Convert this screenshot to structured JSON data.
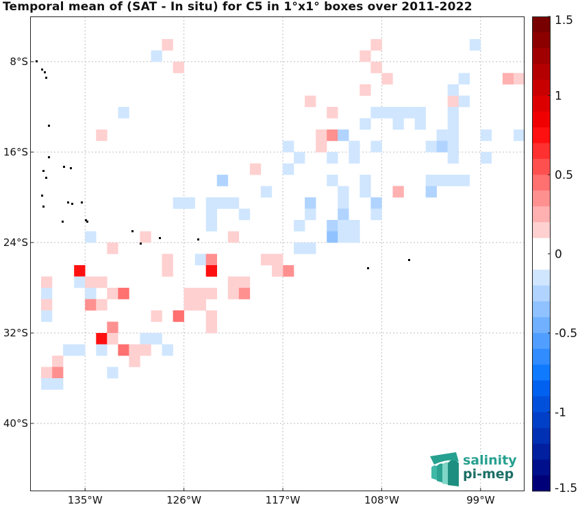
{
  "title": "Temporal mean of (SAT - In situ) for C5 in 1°x1° boxes over 2011-2022",
  "map": {
    "lon_range": [
      -140,
      -95
    ],
    "lat_range": [
      -46,
      -4
    ],
    "lon_ticks": [
      -135,
      -126,
      -117,
      -108,
      -99
    ],
    "lon_tick_labels": [
      "135°W",
      "126°W",
      "117°W",
      "108°W",
      "99°W"
    ],
    "lat_ticks": [
      -8,
      -16,
      -24,
      -32,
      -40
    ],
    "lat_tick_labels": [
      "8°S",
      "16°S",
      "24°S",
      "32°S",
      "40°S"
    ],
    "grid": true
  },
  "colorbar": {
    "vmin": -1.5,
    "vmax": 1.5,
    "tick_values": [
      1.5,
      1,
      0.5,
      0,
      -0.5,
      -1,
      -1.5
    ],
    "tick_labels": [
      "1.5",
      "1",
      "0.5",
      "0",
      "-0.5",
      "-1",
      "-1.5"
    ],
    "colors_top_to_bottom": [
      "#780000",
      "#8c0000",
      "#a00000",
      "#b40000",
      "#c80000",
      "#dc0000",
      "#f00000",
      "#ff1010",
      "#ff3030",
      "#ff5050",
      "#ff7070",
      "#ff9090",
      "#ffb0b0",
      "#ffd0d0",
      "#ffffff",
      "#ffffff",
      "#d0e6ff",
      "#b0d4ff",
      "#90c2ff",
      "#70b0ff",
      "#509eff",
      "#308cff",
      "#107aff",
      "#0060f0",
      "#0050dc",
      "#0040c8",
      "#0030b4",
      "#0020a0",
      "#00108c",
      "#000078"
    ]
  },
  "boxes": [
    [
      -128,
      -6,
      0.15
    ],
    [
      -127,
      -8,
      0.15
    ],
    [
      -109,
      -6,
      0.15
    ],
    [
      -110,
      -7,
      0.15
    ],
    [
      -109,
      -8,
      0.2
    ],
    [
      -108,
      -9,
      0.2
    ],
    [
      -110,
      -10,
      0.15
    ],
    [
      -100,
      -6,
      -0.15
    ],
    [
      -97,
      -9,
      0.25
    ],
    [
      -96,
      -9,
      0.15
    ],
    [
      -101,
      -9,
      -0.1
    ],
    [
      -115,
      -11,
      0.1
    ],
    [
      -113,
      -12,
      0.15
    ],
    [
      -102,
      -11,
      0.12
    ],
    [
      -101,
      -11,
      -0.1
    ],
    [
      -102,
      -10,
      -0.1
    ],
    [
      -109,
      -12,
      -0.1
    ],
    [
      -108,
      -12,
      -0.1
    ],
    [
      -107,
      -12,
      -0.1
    ],
    [
      -106,
      -12,
      -0.1
    ],
    [
      -105,
      -12,
      -0.1
    ],
    [
      -102,
      -12,
      -0.1
    ],
    [
      -110,
      -13,
      -0.1
    ],
    [
      -107,
      -13,
      -0.1
    ],
    [
      -105,
      -13,
      -0.1
    ],
    [
      -102,
      -13,
      -0.1
    ],
    [
      -114,
      -14,
      0.15
    ],
    [
      -113,
      -14,
      0.35
    ],
    [
      -112,
      -14,
      -0.25
    ],
    [
      -103,
      -14,
      -0.1
    ],
    [
      -102,
      -14,
      -0.1
    ],
    [
      -99,
      -14,
      -0.1
    ],
    [
      -96,
      -14,
      -0.1
    ],
    [
      -117,
      -15,
      -0.1
    ],
    [
      -114,
      -15,
      0.15
    ],
    [
      -111,
      -15,
      -0.1
    ],
    [
      -109,
      -15,
      -0.1
    ],
    [
      -104,
      -15,
      -0.1
    ],
    [
      -103,
      -15,
      -0.25
    ],
    [
      -102,
      -15,
      -0.1
    ],
    [
      -116,
      -16,
      -0.1
    ],
    [
      -113,
      -16,
      -0.1
    ],
    [
      -111,
      -16,
      -0.1
    ],
    [
      -102,
      -16,
      -0.1
    ],
    [
      -99,
      -16,
      -0.1
    ],
    [
      -120,
      -17,
      0.15
    ],
    [
      -117,
      -17,
      -0.1
    ],
    [
      -123,
      -18,
      -0.25
    ],
    [
      -113,
      -18,
      -0.1
    ],
    [
      -110,
      -18,
      -0.1
    ],
    [
      -104,
      -18,
      -0.1
    ],
    [
      -103,
      -18,
      -0.1
    ],
    [
      -102,
      -18,
      -0.1
    ],
    [
      -101,
      -18,
      -0.1
    ],
    [
      -119,
      -19,
      -0.1
    ],
    [
      -112,
      -19,
      -0.1
    ],
    [
      -110,
      -19,
      -0.1
    ],
    [
      -107,
      -19,
      0.25
    ],
    [
      -104,
      -19,
      -0.25
    ],
    [
      -134,
      -14,
      0.15
    ],
    [
      -132,
      -12,
      -0.1
    ],
    [
      -129,
      -7,
      -0.1
    ],
    [
      -127,
      -20,
      -0.1
    ],
    [
      -126,
      -20,
      -0.1
    ],
    [
      -124,
      -20,
      -0.1
    ],
    [
      -123,
      -20,
      -0.1
    ],
    [
      -122,
      -20,
      -0.1
    ],
    [
      -115,
      -20,
      -0.25
    ],
    [
      -112,
      -20,
      -0.1
    ],
    [
      -109,
      -20,
      -0.25
    ],
    [
      -124,
      -21,
      -0.1
    ],
    [
      -121,
      -21,
      -0.1
    ],
    [
      -115,
      -21,
      -0.1
    ],
    [
      -112,
      -21,
      -0.25
    ],
    [
      -109,
      -21,
      -0.1
    ],
    [
      -124,
      -22,
      -0.1
    ],
    [
      -116,
      -22,
      -0.1
    ],
    [
      -113,
      -22,
      -0.25
    ],
    [
      -112,
      -22,
      -0.1
    ],
    [
      -111,
      -22,
      -0.1
    ],
    [
      -130,
      -23,
      0.2
    ],
    [
      -122,
      -23,
      0.2
    ],
    [
      -113,
      -23,
      -0.3
    ],
    [
      -112,
      -23,
      -0.1
    ],
    [
      -111,
      -23,
      -0.1
    ],
    [
      -133,
      -24,
      0.2
    ],
    [
      -135,
      -23,
      -0.15
    ],
    [
      -116,
      -24,
      -0.1
    ],
    [
      -115,
      -24,
      -0.1
    ],
    [
      -128,
      -25,
      0.2
    ],
    [
      -125,
      -25,
      -0.1
    ],
    [
      -124,
      -25,
      0.4
    ],
    [
      -119,
      -25,
      0.15
    ],
    [
      -118,
      -25,
      0.15
    ],
    [
      -136,
      -26,
      0.75
    ],
    [
      -128,
      -26,
      0.2
    ],
    [
      -124,
      -26,
      0.75
    ],
    [
      -122,
      -27,
      0.2
    ],
    [
      -117,
      -26,
      0.4
    ],
    [
      -118,
      -26,
      0.15
    ],
    [
      -139,
      -27,
      0.2
    ],
    [
      -136,
      -27,
      -0.1
    ],
    [
      -135,
      -27,
      0.15
    ],
    [
      -134,
      -27,
      0.15
    ],
    [
      -121,
      -27,
      0.15
    ],
    [
      -139,
      -28,
      -0.1
    ],
    [
      -135,
      -28,
      -0.15
    ],
    [
      -133,
      -28,
      0.2
    ],
    [
      -132,
      -28,
      0.45
    ],
    [
      -125,
      -28,
      0.2
    ],
    [
      -124,
      -28,
      0.15
    ],
    [
      -122,
      -28,
      0.2
    ],
    [
      -121,
      -28,
      0.35
    ],
    [
      -126,
      -28,
      0.2
    ],
    [
      -139,
      -29,
      0.2
    ],
    [
      -135,
      -29,
      0.4
    ],
    [
      -134,
      -29,
      0.2
    ],
    [
      -126,
      -29,
      0.2
    ],
    [
      -125,
      -29,
      0.2
    ],
    [
      -139,
      -30,
      -0.1
    ],
    [
      -129,
      -30,
      0.2
    ],
    [
      -127,
      -30,
      0.5
    ],
    [
      -124,
      -30,
      0.2
    ],
    [
      -133,
      -31,
      0.4
    ],
    [
      -124,
      -31,
      0.2
    ],
    [
      -134,
      -32,
      0.75
    ],
    [
      -133,
      -32,
      0.15
    ],
    [
      -130,
      -32,
      -0.1
    ],
    [
      -129,
      -32,
      -0.1
    ],
    [
      -137,
      -33,
      -0.1
    ],
    [
      -136,
      -33,
      -0.1
    ],
    [
      -134,
      -33,
      -0.1
    ],
    [
      -132,
      -33,
      0.5
    ],
    [
      -131,
      -33,
      0.2
    ],
    [
      -130,
      -33,
      0.15
    ],
    [
      -128,
      -33,
      -0.1
    ],
    [
      -138,
      -34,
      0.15
    ],
    [
      -131,
      -34,
      0.2
    ],
    [
      -139,
      -35,
      0.2
    ],
    [
      -138,
      -35,
      0.4
    ],
    [
      -133,
      -35,
      -0.1
    ],
    [
      -139,
      -36,
      -0.1
    ],
    [
      -138,
      -36,
      -0.1
    ],
    [
      -96,
      -30,
      0.0
    ]
  ],
  "logo": {
    "line1": "salinity",
    "line2": "pi-mep"
  }
}
